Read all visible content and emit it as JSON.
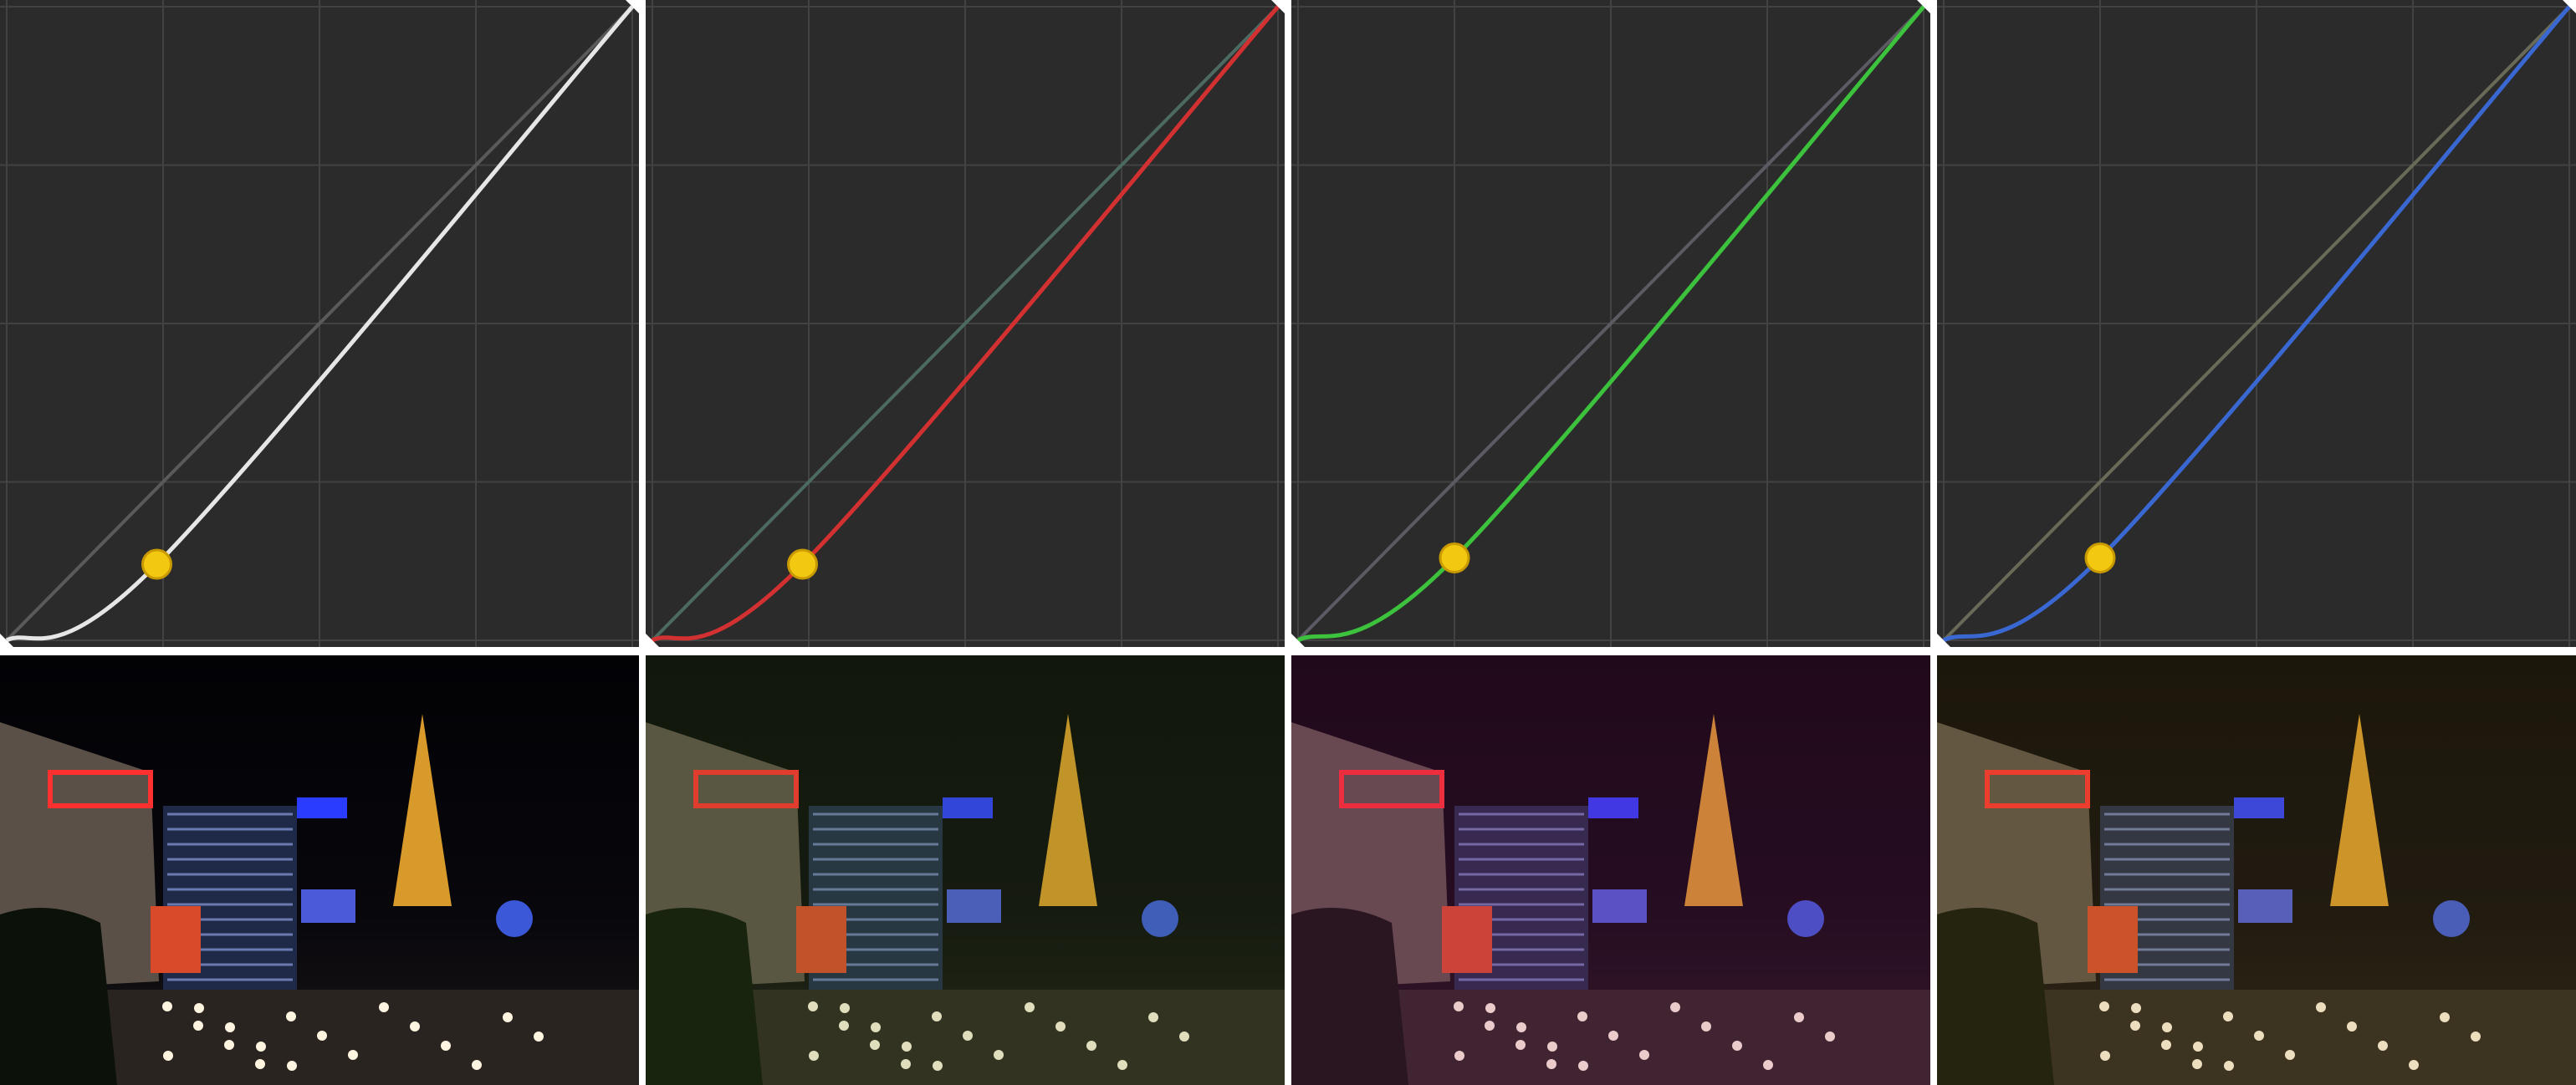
{
  "chart_data": [
    {
      "type": "line",
      "x": [
        0,
        0.24,
        1
      ],
      "values": [
        0,
        0.12,
        1
      ],
      "color": "#e6e6e6",
      "xlim": [
        0,
        1
      ],
      "ylim": [
        0,
        1
      ],
      "xticks": [
        0,
        0.25,
        0.5,
        0.75,
        1
      ],
      "yticks": [
        0,
        0.25,
        0.5,
        0.75,
        1
      ],
      "grid": true
    },
    {
      "type": "line",
      "x": [
        0,
        0.24,
        1
      ],
      "values": [
        0,
        0.12,
        1
      ],
      "color": "#d33131",
      "xlim": [
        0,
        1
      ],
      "ylim": [
        0,
        1
      ],
      "xticks": [
        0,
        0.25,
        0.5,
        0.75,
        1
      ],
      "yticks": [
        0,
        0.25,
        0.5,
        0.75,
        1
      ],
      "grid": true
    },
    {
      "type": "line",
      "x": [
        0,
        0.25,
        1
      ],
      "values": [
        0,
        0.13,
        1
      ],
      "color": "#3cc23c",
      "xlim": [
        0,
        1
      ],
      "ylim": [
        0,
        1
      ],
      "xticks": [
        0,
        0.25,
        0.5,
        0.75,
        1
      ],
      "yticks": [
        0,
        0.25,
        0.5,
        0.75,
        1
      ],
      "grid": true
    },
    {
      "type": "line",
      "x": [
        0,
        0.25,
        1
      ],
      "values": [
        0,
        0.13,
        1
      ],
      "color": "#3a68d2",
      "xlim": [
        0,
        1
      ],
      "ylim": [
        0,
        1
      ],
      "xticks": [
        0,
        0.25,
        0.5,
        0.75,
        1
      ],
      "yticks": [
        0,
        0.25,
        0.5,
        0.75,
        1
      ],
      "grid": true
    }
  ]
}
